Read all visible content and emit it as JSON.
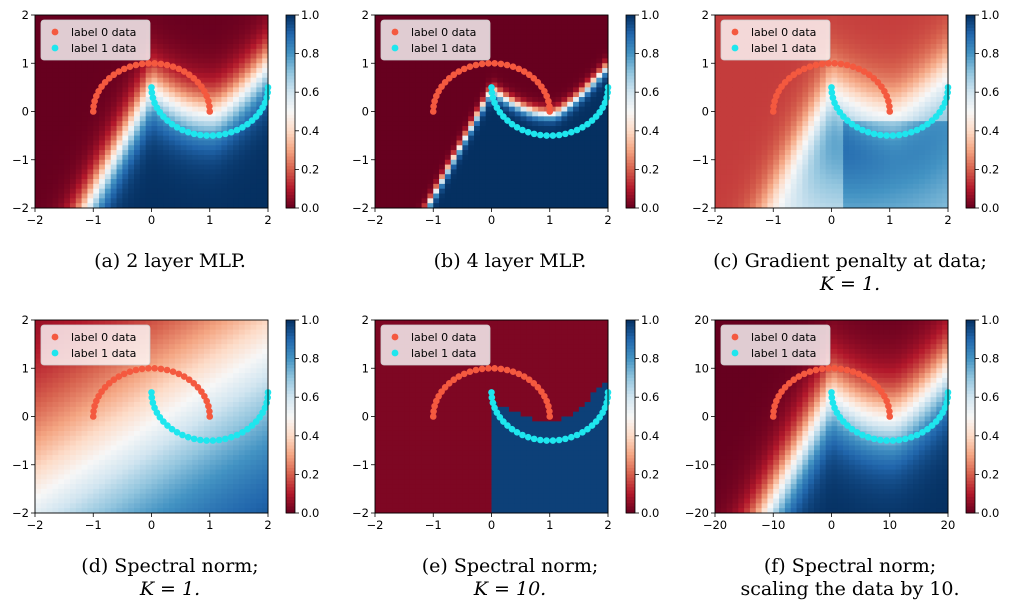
{
  "chart_data": [
    {
      "id": "a",
      "type": "heatmap",
      "caption_line1": "(a) 2 layer MLP.",
      "caption_line2": "",
      "xlim": [
        -2,
        2
      ],
      "ylim": [
        -2,
        2
      ],
      "xticks": [
        "−2",
        "−1",
        "0",
        "1",
        "2"
      ],
      "yticks": [
        "−2",
        "−1",
        "0",
        "1",
        "2"
      ],
      "colorbar_ticks": [
        "0.0",
        "0.2",
        "0.4",
        "0.6",
        "0.8",
        "1.0"
      ],
      "colormap": "RdBu (0.0 dark red → 1.0 dark blue)",
      "legend": [
        "label 0 data",
        "label 1 data"
      ],
      "legend_position": "top-left",
      "heatmap": {
        "model": "boundary",
        "grid": 40,
        "sharpness": 3.0,
        "scale": 1
      },
      "series": [
        {
          "name": "label 0 data",
          "color": "#f4593f",
          "shape": "upper half-moon, center (0,0), radius 1",
          "points": 30
        },
        {
          "name": "label 1 data",
          "color": "#1ee6ee",
          "shape": "lower half-moon, center (1,0.5), radius 1",
          "points": 30
        }
      ]
    },
    {
      "id": "b",
      "type": "heatmap",
      "caption_line1": "(b) 4 layer MLP.",
      "caption_line2": "",
      "xlim": [
        -2,
        2
      ],
      "ylim": [
        -2,
        2
      ],
      "xticks": [
        "−2",
        "−1",
        "0",
        "1",
        "2"
      ],
      "yticks": [
        "−2",
        "−1",
        "0",
        "1",
        "2"
      ],
      "colorbar_ticks": [
        "0.0",
        "0.2",
        "0.4",
        "0.6",
        "0.8",
        "1.0"
      ],
      "colormap": "RdBu (0.0 dark red → 1.0 dark blue)",
      "legend": [
        "label 0 data",
        "label 1 data"
      ],
      "legend_position": "top-left",
      "heatmap": {
        "model": "boundary",
        "grid": 40,
        "sharpness": 14.0,
        "scale": 1
      },
      "series": [
        {
          "name": "label 0 data",
          "color": "#f4593f",
          "shape": "upper half-moon, center (0,0), radius 1",
          "points": 30
        },
        {
          "name": "label 1 data",
          "color": "#1ee6ee",
          "shape": "lower half-moon, center (1,0.5), radius 1",
          "points": 30
        }
      ]
    },
    {
      "id": "c",
      "type": "heatmap",
      "caption_line1": "(c) Gradient penalty at data;",
      "caption_line2": "K = 1.",
      "xlim": [
        -2,
        2
      ],
      "ylim": [
        -2,
        2
      ],
      "xticks": [
        "−2",
        "−1",
        "0",
        "1",
        "2"
      ],
      "yticks": [
        "−2",
        "−1",
        "0",
        "1",
        "2"
      ],
      "colorbar_ticks": [
        "0.0",
        "0.2",
        "0.4",
        "0.6",
        "0.8",
        "1.0"
      ],
      "colormap": "RdBu (0.0 dark red → 1.0 dark blue)",
      "legend": [
        "label 0 data",
        "label 1 data"
      ],
      "legend_position": "top-left",
      "heatmap": {
        "model": "gradient_penalty",
        "grid": 40,
        "sharpness": 2.5,
        "scale": 1
      },
      "series": [
        {
          "name": "label 0 data",
          "color": "#f4593f",
          "shape": "upper half-moon, center (0,0), radius 1",
          "points": 30
        },
        {
          "name": "label 1 data",
          "color": "#1ee6ee",
          "shape": "lower half-moon, center (1,0.5), radius 1",
          "points": 30
        }
      ]
    },
    {
      "id": "d",
      "type": "heatmap",
      "caption_line1": "(d) Spectral norm;",
      "caption_line2": "K = 1.",
      "xlim": [
        -2,
        2
      ],
      "ylim": [
        -2,
        2
      ],
      "xticks": [
        "−2",
        "−1",
        "0",
        "1",
        "2"
      ],
      "yticks": [
        "−2",
        "−1",
        "0",
        "1",
        "2"
      ],
      "colorbar_ticks": [
        "0.0",
        "0.2",
        "0.4",
        "0.6",
        "0.8",
        "1.0"
      ],
      "colormap": "RdBu (0.0 dark red → 1.0 dark blue)",
      "legend": [
        "label 0 data",
        "label 1 data"
      ],
      "legend_position": "top-left",
      "heatmap": {
        "model": "linear",
        "grid": 40,
        "sharpness": 0.55,
        "scale": 1
      },
      "series": [
        {
          "name": "label 0 data",
          "color": "#f4593f",
          "shape": "upper half-moon, center (0,0), radius 1",
          "points": 30
        },
        {
          "name": "label 1 data",
          "color": "#1ee6ee",
          "shape": "lower half-moon, center (1,0.5), radius 1",
          "points": 30
        }
      ]
    },
    {
      "id": "e",
      "type": "heatmap",
      "caption_line1": "(e) Spectral norm;",
      "caption_line2": "K = 10.",
      "xlim": [
        -2,
        2
      ],
      "ylim": [
        -2,
        2
      ],
      "xticks": [
        "−2",
        "−1",
        "0",
        "1",
        "2"
      ],
      "yticks": [
        "−2",
        "−1",
        "0",
        "1",
        "2"
      ],
      "colorbar_ticks": [
        "0.0",
        "0.2",
        "0.4",
        "0.6",
        "0.8",
        "1.0"
      ],
      "colormap": "RdBu (0.0 dark red → 1.0 dark blue)",
      "legend": [
        "label 0 data",
        "label 1 data"
      ],
      "legend_position": "top-left",
      "heatmap": {
        "model": "vertical_wall",
        "grid": 40,
        "sharpness": 10.0,
        "scale": 1
      },
      "series": [
        {
          "name": "label 0 data",
          "color": "#f4593f",
          "shape": "upper half-moon, center (0,0), radius 1",
          "points": 30
        },
        {
          "name": "label 1 data",
          "color": "#1ee6ee",
          "shape": "lower half-moon, center (1,0.5), radius 1",
          "points": 30
        }
      ]
    },
    {
      "id": "f",
      "type": "heatmap",
      "caption_line1": "(f) Spectral norm;",
      "caption_line2": "scaling the data by 10.",
      "xlim": [
        -20,
        20
      ],
      "ylim": [
        -20,
        20
      ],
      "xticks": [
        "−20",
        "−10",
        "0",
        "10",
        "20"
      ],
      "yticks": [
        "−20",
        "−10",
        "0",
        "10",
        "20"
      ],
      "colorbar_ticks": [
        "0.0",
        "0.2",
        "0.4",
        "0.6",
        "0.8",
        "1.0"
      ],
      "colormap": "RdBu (0.0 dark red → 1.0 dark blue)",
      "legend": [
        "label 0 data",
        "label 1 data"
      ],
      "legend_position": "top-left",
      "heatmap": {
        "model": "boundary",
        "grid": 40,
        "sharpness": 2.2,
        "scale": 10
      },
      "series": [
        {
          "name": "label 0 data",
          "color": "#f4593f",
          "shape": "upper half-moon, center (0,0), radius 10",
          "points": 30
        },
        {
          "name": "label 1 data",
          "color": "#1ee6ee",
          "shape": "lower half-moon, center (10,5), radius 10",
          "points": 30
        }
      ]
    }
  ]
}
